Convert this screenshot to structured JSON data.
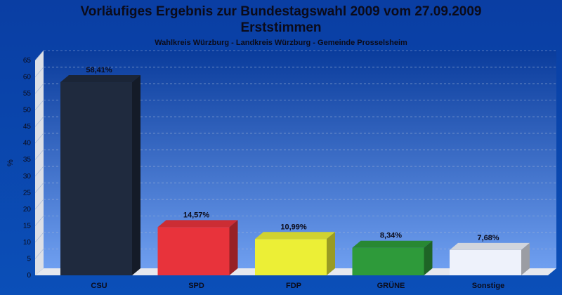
{
  "header": {
    "title": "Vorläufiges Ergebnis zur Bundestagswahl 2009 vom 27.09.2009",
    "title2": "Erststimmen",
    "subtitle": "Wahlkreis Würzburg - Landkreis Würzburg - Gemeinde Prosselsheim"
  },
  "chart_data": {
    "type": "bar",
    "title": "Vorläufiges Ergebnis zur Bundestagswahl 2009 vom 27.09.2009",
    "subtitle": "Wahlkreis Würzburg - Landkreis Würzburg - Gemeinde Prosselsheim",
    "ylabel": "%",
    "xlabel": "",
    "ylim": [
      0,
      65
    ],
    "yticks": [
      0,
      5,
      10,
      15,
      20,
      25,
      30,
      35,
      40,
      45,
      50,
      55,
      60,
      65
    ],
    "grid": true,
    "categories": [
      "CSU",
      "SPD",
      "FDP",
      "GRÜNE",
      "Sonstige"
    ],
    "values": [
      58.41,
      14.57,
      10.99,
      8.34,
      7.68
    ],
    "value_labels": [
      "58,41%",
      "14,57%",
      "10,99%",
      "8,34%",
      "7,68%"
    ],
    "colors": [
      "#1f2a3e",
      "#e8333b",
      "#ecef36",
      "#2e9a3a",
      "#eef2fb"
    ]
  }
}
